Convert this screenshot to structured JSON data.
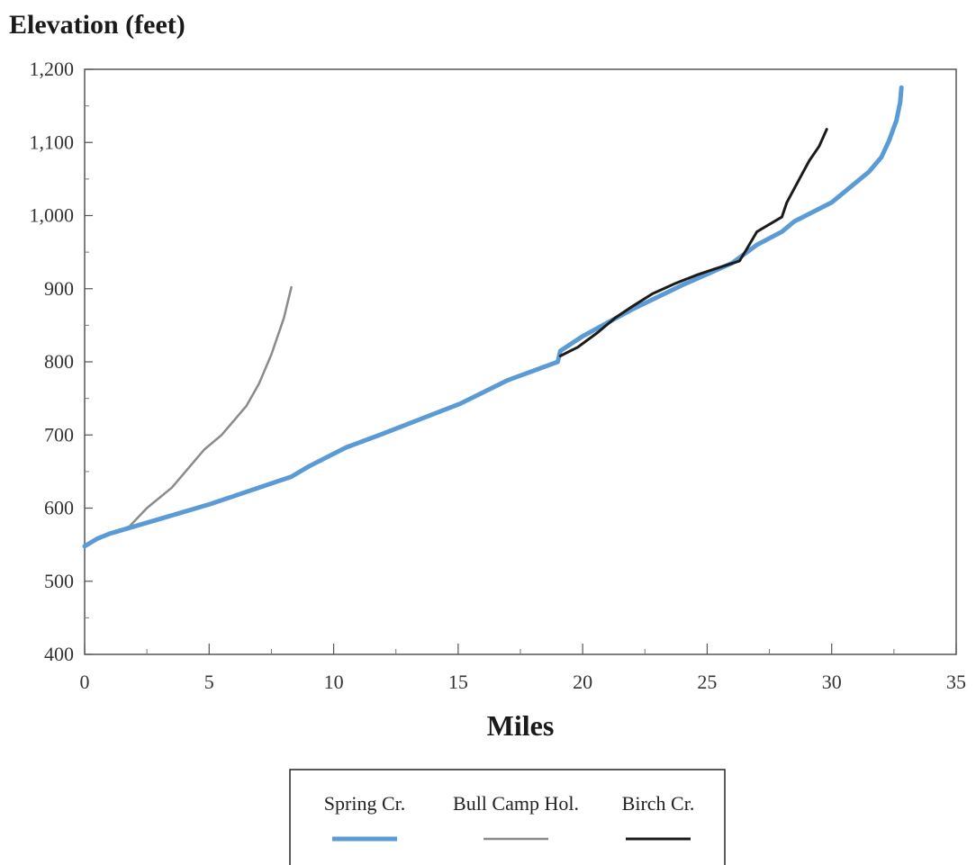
{
  "chart_data": {
    "type": "line",
    "ylabel": "Elevation (feet)",
    "xlabel": "Miles",
    "xlim": [
      0,
      35
    ],
    "ylim": [
      400,
      1200
    ],
    "xticks": [
      0,
      5,
      10,
      15,
      20,
      25,
      30,
      35
    ],
    "yticks": [
      400,
      500,
      600,
      700,
      800,
      900,
      1000,
      1100,
      1200
    ],
    "ytick_labels": [
      "400",
      "500",
      "600",
      "700",
      "800",
      "900",
      "1,000",
      "1,100",
      "1,200"
    ],
    "xtick_labels": [
      "0",
      "5",
      "10",
      "15",
      "20",
      "25",
      "30",
      "35"
    ],
    "grid": false,
    "legend_position": "bottom-center",
    "series": [
      {
        "name": "Spring Cr.",
        "color": "#5b9bd5",
        "points": [
          [
            0,
            548
          ],
          [
            0.5,
            558
          ],
          [
            1,
            565
          ],
          [
            3,
            585
          ],
          [
            5,
            605
          ],
          [
            7,
            628
          ],
          [
            8.3,
            643
          ],
          [
            9,
            657
          ],
          [
            10.5,
            683
          ],
          [
            12,
            702
          ],
          [
            13.5,
            722
          ],
          [
            15.1,
            743
          ],
          [
            17,
            775
          ],
          [
            19,
            800
          ],
          [
            19.1,
            815
          ],
          [
            20,
            835
          ],
          [
            22,
            872
          ],
          [
            24,
            905
          ],
          [
            26,
            935
          ],
          [
            27,
            960
          ],
          [
            28,
            978
          ],
          [
            28.5,
            992
          ],
          [
            30,
            1018
          ],
          [
            31.5,
            1060
          ],
          [
            32,
            1080
          ],
          [
            32.3,
            1102
          ],
          [
            32.6,
            1130
          ],
          [
            32.75,
            1155
          ],
          [
            32.8,
            1175
          ]
        ]
      },
      {
        "name": "Bull Camp Hol.",
        "color": "#8a8a8a",
        "points": [
          [
            1,
            564
          ],
          [
            1.8,
            575
          ],
          [
            2.5,
            600
          ],
          [
            3.5,
            628
          ],
          [
            4.8,
            680
          ],
          [
            5.5,
            700
          ],
          [
            6.5,
            740
          ],
          [
            7,
            770
          ],
          [
            7.5,
            810
          ],
          [
            8,
            860
          ],
          [
            8.3,
            902
          ]
        ]
      },
      {
        "name": "Birch Cr.",
        "color": "#1b1b1b",
        "points": [
          [
            19.1,
            808
          ],
          [
            19.8,
            820
          ],
          [
            20.6,
            840
          ],
          [
            21.3,
            860
          ],
          [
            22,
            876
          ],
          [
            22.8,
            893
          ],
          [
            23.7,
            907
          ],
          [
            24.6,
            919
          ],
          [
            25.3,
            927
          ],
          [
            26.3,
            938
          ],
          [
            26.6,
            955
          ],
          [
            27,
            978
          ],
          [
            28,
            998
          ],
          [
            28.2,
            1018
          ],
          [
            28.7,
            1050
          ],
          [
            29.1,
            1075
          ],
          [
            29.5,
            1095
          ],
          [
            29.8,
            1118
          ]
        ]
      }
    ]
  }
}
